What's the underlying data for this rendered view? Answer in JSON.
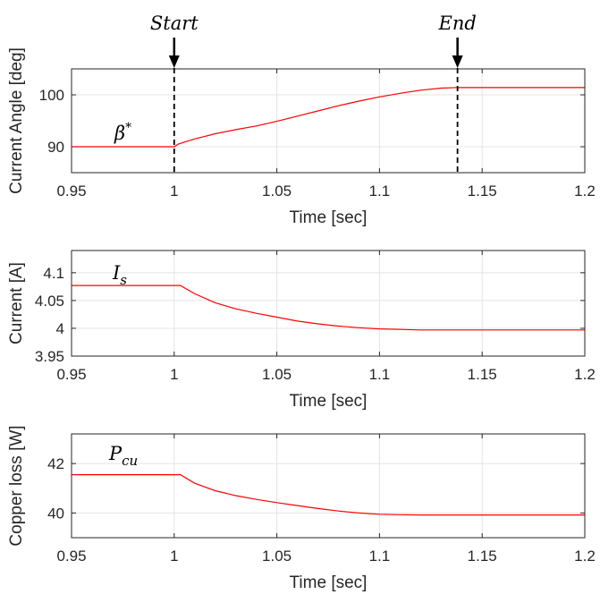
{
  "chart_data": [
    {
      "type": "line",
      "xlabel": "Time [sec]",
      "ylabel": "Current Angle [deg]",
      "xlim": [
        0.95,
        1.2
      ],
      "ylim": [
        85,
        105
      ],
      "xticks": [
        "0.95",
        "1",
        "1.05",
        "1.1",
        "1.15",
        "1.2"
      ],
      "yticks": [
        "90",
        "100"
      ],
      "grid": true,
      "series_label": {
        "base": "β",
        "sup": "*"
      },
      "series": [
        {
          "color": "#ff0000",
          "x": [
            0.95,
            0.97,
            0.99,
            1.0,
            1.002,
            1.005,
            1.01,
            1.02,
            1.03,
            1.04,
            1.05,
            1.06,
            1.07,
            1.08,
            1.09,
            1.1,
            1.11,
            1.12,
            1.13,
            1.137,
            1.14,
            1.16,
            1.18,
            1.2
          ],
          "y": [
            90,
            90,
            90,
            90,
            90.5,
            90.9,
            91.5,
            92.5,
            93.3,
            94.0,
            94.9,
            95.9,
            96.9,
            97.9,
            98.8,
            99.6,
            100.3,
            100.9,
            101.3,
            101.4,
            101.4,
            101.4,
            101.4,
            101.4
          ]
        }
      ],
      "annotations": [
        {
          "text": "Start",
          "x": 1.0
        },
        {
          "text": "End",
          "x": 1.138
        }
      ]
    },
    {
      "type": "line",
      "xlabel": "Time [sec]",
      "ylabel": "Current [A]",
      "xlim": [
        0.95,
        1.2
      ],
      "ylim": [
        3.95,
        4.14
      ],
      "xticks": [
        "0.95",
        "1",
        "1.05",
        "1.1",
        "1.15",
        "1.2"
      ],
      "yticks": [
        "3.95",
        "4",
        "4.05",
        "4.1"
      ],
      "grid": true,
      "series_label": {
        "base": "I",
        "sub": "s"
      },
      "series": [
        {
          "color": "#ff0000",
          "x": [
            0.95,
            0.98,
            1.0,
            1.003,
            1.01,
            1.02,
            1.03,
            1.04,
            1.05,
            1.06,
            1.07,
            1.08,
            1.09,
            1.1,
            1.11,
            1.12,
            1.13,
            1.15,
            1.17,
            1.2
          ],
          "y": [
            4.077,
            4.077,
            4.077,
            4.077,
            4.062,
            4.046,
            4.035,
            4.027,
            4.02,
            4.013,
            4.008,
            4.004,
            4.001,
            3.999,
            3.998,
            3.997,
            3.997,
            3.997,
            3.997,
            3.997
          ]
        }
      ]
    },
    {
      "type": "line",
      "xlabel": "Time [sec]",
      "ylabel": "Copper loss [W]",
      "xlim": [
        0.95,
        1.2
      ],
      "ylim": [
        39.0,
        43.2
      ],
      "xticks": [
        "0.95",
        "1",
        "1.05",
        "1.1",
        "1.15",
        "1.2"
      ],
      "yticks": [
        "40",
        "42"
      ],
      "grid": true,
      "series_label": {
        "base": "P",
        "sub": "cu"
      },
      "series": [
        {
          "color": "#ff0000",
          "x": [
            0.95,
            0.98,
            1.0,
            1.003,
            1.01,
            1.02,
            1.03,
            1.04,
            1.05,
            1.06,
            1.07,
            1.08,
            1.09,
            1.1,
            1.11,
            1.12,
            1.13,
            1.15,
            1.17,
            1.2
          ],
          "y": [
            41.55,
            41.55,
            41.55,
            41.55,
            41.2,
            40.9,
            40.7,
            40.55,
            40.42,
            40.3,
            40.18,
            40.08,
            40.0,
            39.95,
            39.93,
            39.92,
            39.92,
            39.92,
            39.92,
            39.92
          ]
        }
      ]
    }
  ]
}
